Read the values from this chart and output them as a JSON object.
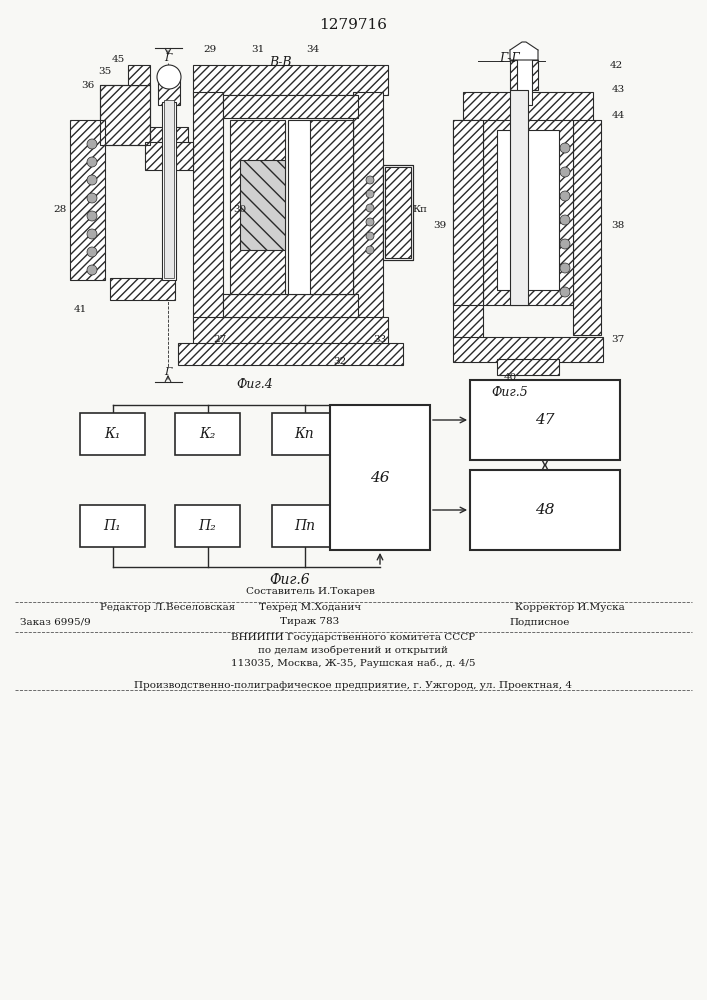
{
  "patent_number": "1279716",
  "bg_color": "#f8f8f5",
  "text_color": "#1a1a1a",
  "line_color": "#2a2a2a",
  "hatch_color": "#555555",
  "footer": {
    "col1_row1": "Редактор Л.Веселовская",
    "col2_row1_top": "Составитель И.Токарев",
    "col2_row1_bot": "Техред М.Ходанич",
    "col3_row1": "Корректор И.Муска",
    "col1_row2": "Заказ 6995/9",
    "col2_row2": "Тираж 783",
    "col3_row2": "Подписное",
    "vniipи_1": "ВНИИПИ Государственного комитета СССР",
    "vniipи_2": "по делам изобретений и открытий",
    "vniipи_3": "113035, Москва, Ж-35, Раушская наб., д. 4/5",
    "proizv": "Производственно-полиграфическое предприятие, г. Ужгород, ул. Проектная, 4"
  },
  "block_diagram": {
    "K_labels": [
      "К₁",
      "К₂",
      "Кп"
    ],
    "P_labels": [
      "П₁",
      "П₂",
      "Пп"
    ],
    "box46_label": "46",
    "box47_label": "47",
    "box48_label": "48",
    "fig_label": "Фиг.6"
  },
  "fig4_label": "Фиг.4",
  "fig5_label": "Фиг.5",
  "section_BB": "В-В",
  "section_GG": "Г-Г"
}
